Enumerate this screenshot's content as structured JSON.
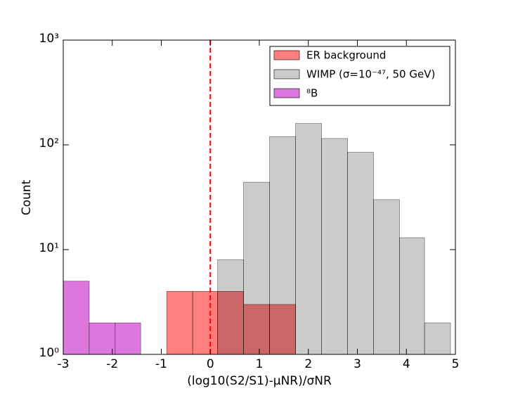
{
  "chart_data": {
    "type": "histogram",
    "xlabel": "(log10(S2/S1)-μNR)/σNR",
    "ylabel": "Count",
    "xlim": [
      -3,
      5
    ],
    "xticks": [
      -3,
      -2,
      -1,
      0,
      1,
      2,
      3,
      4,
      5
    ],
    "ylim": [
      1,
      1000
    ],
    "ylog": true,
    "yticks": [
      {
        "value": 1,
        "label": "10⁰"
      },
      {
        "value": 10,
        "label": "10¹"
      },
      {
        "value": 100,
        "label": "10²"
      },
      {
        "value": 1000,
        "label": "10³"
      }
    ],
    "vline": {
      "x": 0,
      "color": "#ff0000"
    },
    "legend": "upper right",
    "series": [
      {
        "name": "ER background",
        "color": "#ff0000",
        "opacity": 0.5,
        "bins": [
          -0.89,
          -0.36,
          0.15,
          0.68,
          1.21,
          1.74
        ],
        "values": [
          4,
          4,
          4,
          3,
          3
        ]
      },
      {
        "name": "WIMP (σ=10⁻⁴⁷, 50 GeV)",
        "color": "#000000",
        "opacity": 0.2,
        "bins": [
          0.15,
          0.68,
          1.21,
          1.74,
          2.27,
          2.8,
          3.33,
          3.86,
          4.37,
          4.9
        ],
        "values": [
          8,
          44,
          120,
          160,
          115,
          85,
          30,
          13,
          2
        ]
      },
      {
        "name": "⁸B",
        "color": "#dd77dd",
        "opacity": 1,
        "bins": [
          -3,
          -2.47,
          -1.94,
          -1.42
        ],
        "values": [
          5,
          2,
          2
        ]
      }
    ]
  }
}
